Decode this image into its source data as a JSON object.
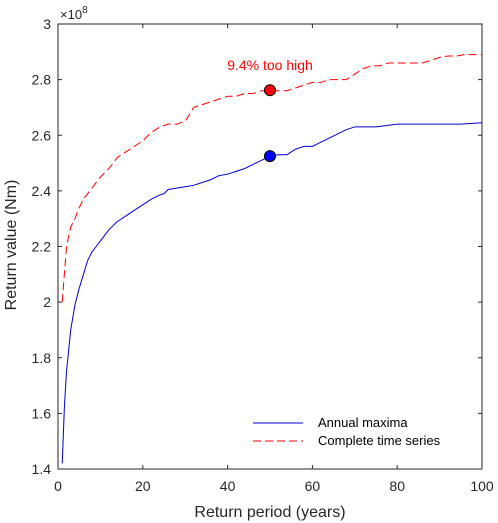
{
  "chart_data": {
    "type": "line",
    "title": "",
    "xlabel": "Return period (years)",
    "ylabel": "Return value (Nm)",
    "xlim": [
      0,
      100
    ],
    "ylim": [
      1.4,
      3.0
    ],
    "y_scale_exponent_label": "×10",
    "y_scale_exponent_power": "8",
    "x_ticks": [
      "0",
      "20",
      "40",
      "60",
      "80",
      "100"
    ],
    "y_ticks": [
      "1.4",
      "1.6",
      "1.8",
      "2",
      "2.2",
      "2.4",
      "2.6",
      "2.8",
      "3"
    ],
    "grid": false,
    "legend_position": "bottom-right",
    "series": [
      {
        "name": "Annual maxima",
        "color": "#0000cc",
        "style": "solid",
        "x": [
          1,
          1.5,
          2,
          3,
          4,
          5,
          6,
          7,
          8,
          9,
          10,
          12,
          14,
          16,
          18,
          20,
          22,
          24,
          25,
          26,
          28,
          30,
          32,
          34,
          36,
          38,
          40,
          42,
          44,
          46,
          48,
          50,
          52,
          54,
          56,
          58,
          60,
          62,
          64,
          66,
          68,
          70,
          75,
          80,
          85,
          90,
          95,
          100
        ],
        "y": [
          1.42,
          1.62,
          1.75,
          1.9,
          1.99,
          2.05,
          2.1,
          2.15,
          2.18,
          2.2,
          2.22,
          2.26,
          2.29,
          2.31,
          2.33,
          2.35,
          2.37,
          2.385,
          2.39,
          2.405,
          2.41,
          2.415,
          2.42,
          2.43,
          2.44,
          2.455,
          2.46,
          2.47,
          2.48,
          2.495,
          2.51,
          2.525,
          2.53,
          2.53,
          2.55,
          2.56,
          2.56,
          2.575,
          2.59,
          2.605,
          2.62,
          2.63,
          2.63,
          2.64,
          2.64,
          2.64,
          2.64,
          2.645
        ]
      },
      {
        "name": "Complete time series",
        "color": "#ff0000",
        "style": "dashed",
        "x": [
          1,
          1.5,
          2,
          3,
          4,
          5,
          6,
          7,
          8,
          9,
          10,
          12,
          14,
          16,
          18,
          20,
          22,
          24,
          26,
          28,
          30,
          32,
          34,
          36,
          38,
          40,
          42,
          44,
          46,
          48,
          50,
          52,
          54,
          56,
          58,
          60,
          62,
          64,
          66,
          68,
          70,
          72,
          74,
          76,
          78,
          80,
          84,
          86,
          88,
          90,
          92,
          94,
          96,
          98,
          100
        ],
        "y": [
          2.0,
          2.1,
          2.2,
          2.27,
          2.3,
          2.34,
          2.37,
          2.39,
          2.41,
          2.43,
          2.45,
          2.48,
          2.52,
          2.54,
          2.56,
          2.58,
          2.61,
          2.63,
          2.64,
          2.64,
          2.65,
          2.7,
          2.71,
          2.72,
          2.73,
          2.74,
          2.74,
          2.75,
          2.75,
          2.76,
          2.76,
          2.76,
          2.76,
          2.77,
          2.78,
          2.79,
          2.79,
          2.8,
          2.8,
          2.8,
          2.82,
          2.84,
          2.85,
          2.85,
          2.86,
          2.86,
          2.86,
          2.86,
          2.87,
          2.88,
          2.885,
          2.885,
          2.89,
          2.89,
          2.89
        ]
      }
    ],
    "markers": [
      {
        "series": "Complete time series",
        "x": 50,
        "y": 2.762,
        "color": "#ff0000"
      },
      {
        "series": "Annual maxima",
        "x": 50,
        "y": 2.525,
        "color": "#0000ff"
      }
    ],
    "annotations": [
      {
        "text": "9.4% too high",
        "x": 50,
        "y": 2.81,
        "color": "#ff0000"
      }
    ]
  }
}
